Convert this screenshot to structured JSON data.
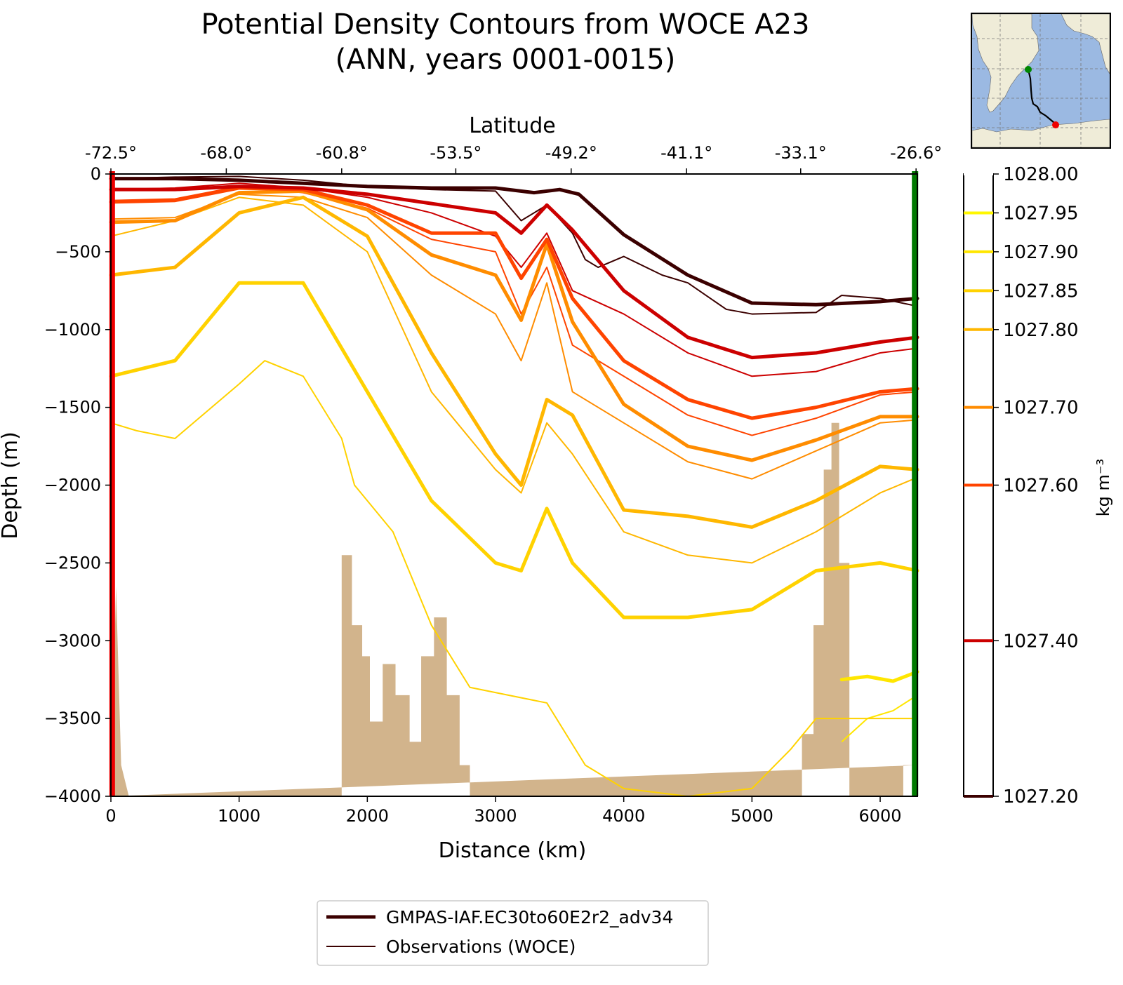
{
  "chart_data": {
    "type": "line",
    "title": "Potential Density Contours from WOCE A23",
    "subtitle": "(ANN, years 0001-0015)",
    "xlabel": "Distance (km)",
    "ylabel": "Depth (m)",
    "top_axis_label": "Latitude",
    "xlim": [
      0,
      6290
    ],
    "ylim": [
      -4000,
      0
    ],
    "x_ticks": [
      0,
      1000,
      2000,
      3000,
      4000,
      5000,
      6000
    ],
    "x_tick_labels": [
      "0",
      "1000",
      "2000",
      "3000",
      "4000",
      "5000",
      "6000"
    ],
    "y_ticks": [
      0,
      -500,
      -1000,
      -1500,
      -2000,
      -2500,
      -3000,
      -3500,
      -4000
    ],
    "y_tick_labels": [
      "0",
      "−500",
      "−1000",
      "−1500",
      "−2000",
      "−2500",
      "−3000",
      "−3500",
      "−4000"
    ],
    "top_ticks": [
      0,
      900,
      1800,
      2690,
      3590,
      4490,
      5380,
      6280
    ],
    "top_tick_labels": [
      "-72.5°",
      "-68.0°",
      "-60.8°",
      "-53.5°",
      "-49.2°",
      "-41.1°",
      "-33.1°",
      "-26.6°"
    ],
    "colorbar": {
      "label": "kg m⁻³",
      "range": [
        1027.2,
        1028.0
      ],
      "ticks": [
        1027.2,
        1027.4,
        1027.6,
        1027.7,
        1027.8,
        1027.85,
        1027.9,
        1027.95,
        1028.0
      ],
      "tick_labels": [
        "1027.20",
        "1027.40",
        "1027.60",
        "1027.70",
        "1027.80",
        "1027.85",
        "1027.90",
        "1027.95",
        "1028.00"
      ],
      "colors": [
        "#3b0000",
        "#cc0000",
        "#ff4400",
        "#ff8c00",
        "#ffb700",
        "#ffd200",
        "#ffe600",
        "#fff700",
        "#ffffff"
      ]
    },
    "legend": {
      "placement": "bottom-center",
      "entries": [
        {
          "label": "GMPAS-IAF.EC30to60E2r2_adv34",
          "style": "thick"
        },
        {
          "label": "Observations (WOCE)",
          "style": "thin"
        }
      ]
    },
    "section_end_colors": {
      "start": "#ee0000",
      "end": "#007a00"
    },
    "bathymetry_color": "#d2b48c",
    "bathymetry": {
      "x": [
        0,
        40,
        40,
        80,
        80,
        140,
        140,
        1800,
        1800,
        1880,
        1880,
        1960,
        1960,
        2020,
        2020,
        2120,
        2120,
        2220,
        2220,
        2330,
        2330,
        2420,
        2420,
        2520,
        2520,
        2620,
        2620,
        2720,
        2720,
        2800,
        2800,
        5390,
        5390,
        5480,
        5480,
        5560,
        5560,
        5620,
        5620,
        5680,
        5680,
        5760,
        5760,
        6180,
        6180,
        6290
      ],
      "depth": [
        -4000,
        -2650,
        -2650,
        -3800,
        -3800,
        -4000,
        -4000,
        -4000,
        -2450,
        -2450,
        -2900,
        -2900,
        -3100,
        -3100,
        -3520,
        -3520,
        -3150,
        -3150,
        -3350,
        -3350,
        -3650,
        -3650,
        -3100,
        -3100,
        -2850,
        -2850,
        -3350,
        -3350,
        -3800,
        -3800,
        -4000,
        -4000,
        -3600,
        -3600,
        -2900,
        -2900,
        -1900,
        -1900,
        -1600,
        -1600,
        -2500,
        -2500,
        -4000,
        -4000,
        -3800,
        -3800
      ]
    },
    "series": [
      {
        "level": 1027.2,
        "color": "#3b0000",
        "model": {
          "x": [
            0,
            500,
            1000,
            1500,
            2000,
            2500,
            3000,
            3300,
            3500,
            3650,
            4000,
            4500,
            5000,
            5500,
            6000,
            6290
          ],
          "y": [
            -30,
            -30,
            -40,
            -60,
            -80,
            -90,
            -90,
            -120,
            -100,
            -130,
            -390,
            -650,
            -830,
            -840,
            -820,
            -800
          ]
        },
        "obs": {
          "x": [
            0,
            500,
            1000,
            1500,
            2000,
            2500,
            3000,
            3200,
            3400,
            3600,
            3700,
            3800,
            4000,
            4300,
            4500,
            4800,
            5000,
            5500,
            5700,
            6000,
            6290
          ],
          "y": [
            -30,
            -20,
            -15,
            -40,
            -80,
            -100,
            -110,
            -300,
            -200,
            -380,
            -550,
            -600,
            -530,
            -650,
            -700,
            -870,
            -900,
            -890,
            -780,
            -800,
            -850
          ]
        }
      },
      {
        "level": 1027.4,
        "color": "#cc0000",
        "model": {
          "x": [
            0,
            500,
            1000,
            1500,
            2000,
            2500,
            3000,
            3200,
            3400,
            3600,
            4000,
            4500,
            5000,
            5500,
            6000,
            6290
          ],
          "y": [
            -100,
            -100,
            -80,
            -90,
            -130,
            -190,
            -250,
            -380,
            -200,
            -360,
            -750,
            -1050,
            -1180,
            -1150,
            -1080,
            -1050
          ]
        },
        "obs": {
          "x": [
            0,
            500,
            1000,
            1500,
            2000,
            2500,
            3000,
            3200,
            3400,
            3600,
            4000,
            4500,
            5000,
            5500,
            6000,
            6290
          ],
          "y": [
            -100,
            -90,
            -60,
            -90,
            -150,
            -250,
            -400,
            -600,
            -380,
            -750,
            -900,
            -1150,
            -1300,
            -1270,
            -1150,
            -1120
          ]
        }
      },
      {
        "level": 1027.6,
        "color": "#ff4400",
        "model": {
          "x": [
            0,
            500,
            1000,
            1500,
            2000,
            2500,
            3000,
            3200,
            3400,
            3600,
            4000,
            4500,
            5000,
            5500,
            6000,
            6290
          ],
          "y": [
            -180,
            -170,
            -90,
            -100,
            -200,
            -380,
            -380,
            -670,
            -420,
            -800,
            -1200,
            -1450,
            -1570,
            -1500,
            -1400,
            -1380
          ]
        },
        "obs": {
          "x": [
            0,
            500,
            1000,
            1500,
            2000,
            2500,
            3000,
            3200,
            3400,
            3600,
            4000,
            4500,
            5000,
            5500,
            6000,
            6290
          ],
          "y": [
            -170,
            -160,
            -80,
            -120,
            -220,
            -420,
            -500,
            -900,
            -600,
            -1100,
            -1300,
            -1550,
            -1680,
            -1570,
            -1420,
            -1400
          ]
        }
      },
      {
        "level": 1027.7,
        "color": "#ff8c00",
        "model": {
          "x": [
            0,
            500,
            1000,
            1500,
            2000,
            2500,
            3000,
            3200,
            3400,
            3600,
            4000,
            4500,
            5000,
            5500,
            6000,
            6290
          ],
          "y": [
            -310,
            -300,
            -120,
            -110,
            -230,
            -520,
            -650,
            -940,
            -450,
            -950,
            -1480,
            -1750,
            -1840,
            -1710,
            -1560,
            -1560
          ]
        },
        "obs": {
          "x": [
            0,
            500,
            1000,
            1500,
            2000,
            2500,
            3000,
            3200,
            3400,
            3600,
            4000,
            4500,
            5000,
            5500,
            6000,
            6290
          ],
          "y": [
            -290,
            -280,
            -130,
            -150,
            -280,
            -650,
            -900,
            -1200,
            -700,
            -1400,
            -1600,
            -1850,
            -1960,
            -1780,
            -1600,
            -1580
          ]
        }
      },
      {
        "level": 1027.8,
        "color": "#ffb700",
        "model": {
          "x": [
            0,
            500,
            1000,
            1500,
            2000,
            2500,
            3000,
            3200,
            3400,
            3600,
            4000,
            4500,
            5000,
            5500,
            6000,
            6290
          ],
          "y": [
            -650,
            -600,
            -250,
            -150,
            -400,
            -1150,
            -1800,
            -2000,
            -1450,
            -1550,
            -2160,
            -2200,
            -2270,
            -2100,
            -1880,
            -1900
          ]
        },
        "obs": {
          "x": [
            0,
            500,
            1000,
            1500,
            2000,
            2500,
            3000,
            3200,
            3400,
            3600,
            4000,
            4500,
            5000,
            5500,
            6000,
            6290
          ],
          "y": [
            -400,
            -300,
            -150,
            -200,
            -500,
            -1400,
            -1900,
            -2050,
            -1600,
            -1800,
            -2300,
            -2450,
            -2500,
            -2300,
            -2050,
            -1950
          ]
        }
      },
      {
        "level": 1027.85,
        "color": "#ffd200",
        "model": {
          "x": [
            0,
            500,
            1000,
            1500,
            2000,
            2500,
            3000,
            3200,
            3400,
            3600,
            4000,
            4500,
            5000,
            5500,
            6000,
            6290
          ],
          "y": [
            -1300,
            -1200,
            -700,
            -700,
            -1400,
            -2100,
            -2500,
            -2550,
            -2150,
            -2500,
            -2850,
            -2850,
            -2800,
            -2550,
            -2500,
            -2550
          ]
        },
        "obs": {
          "x": [
            0,
            200,
            500,
            1000,
            1200,
            1500,
            1800,
            1900,
            2200,
            2500,
            2800,
            3100,
            3400,
            3700,
            4000,
            4500,
            5000,
            5300,
            5500,
            6000,
            6290
          ],
          "y": [
            -1600,
            -1650,
            -1700,
            -1350,
            -1200,
            -1300,
            -1700,
            -2000,
            -2300,
            -2900,
            -3300,
            -3350,
            -3400,
            -3800,
            -3950,
            -4000,
            -3950,
            -3700,
            -3500,
            -3500,
            -3500
          ]
        }
      },
      {
        "level": 1027.9,
        "color": "#ffe600",
        "model": {
          "x": [
            5700,
            5900,
            6100,
            6290
          ],
          "y": [
            -3250,
            -3230,
            -3260,
            -3200
          ]
        },
        "obs": {
          "x": [
            5700,
            5900,
            6100,
            6290
          ],
          "y": [
            -3650,
            -3500,
            -3450,
            -3350
          ]
        }
      }
    ]
  },
  "inset_map": {
    "land_color": "#efecd8",
    "ocean_color": "#9bb9e2",
    "start_marker_color": "#008800",
    "end_marker_color": "#ee0000"
  }
}
